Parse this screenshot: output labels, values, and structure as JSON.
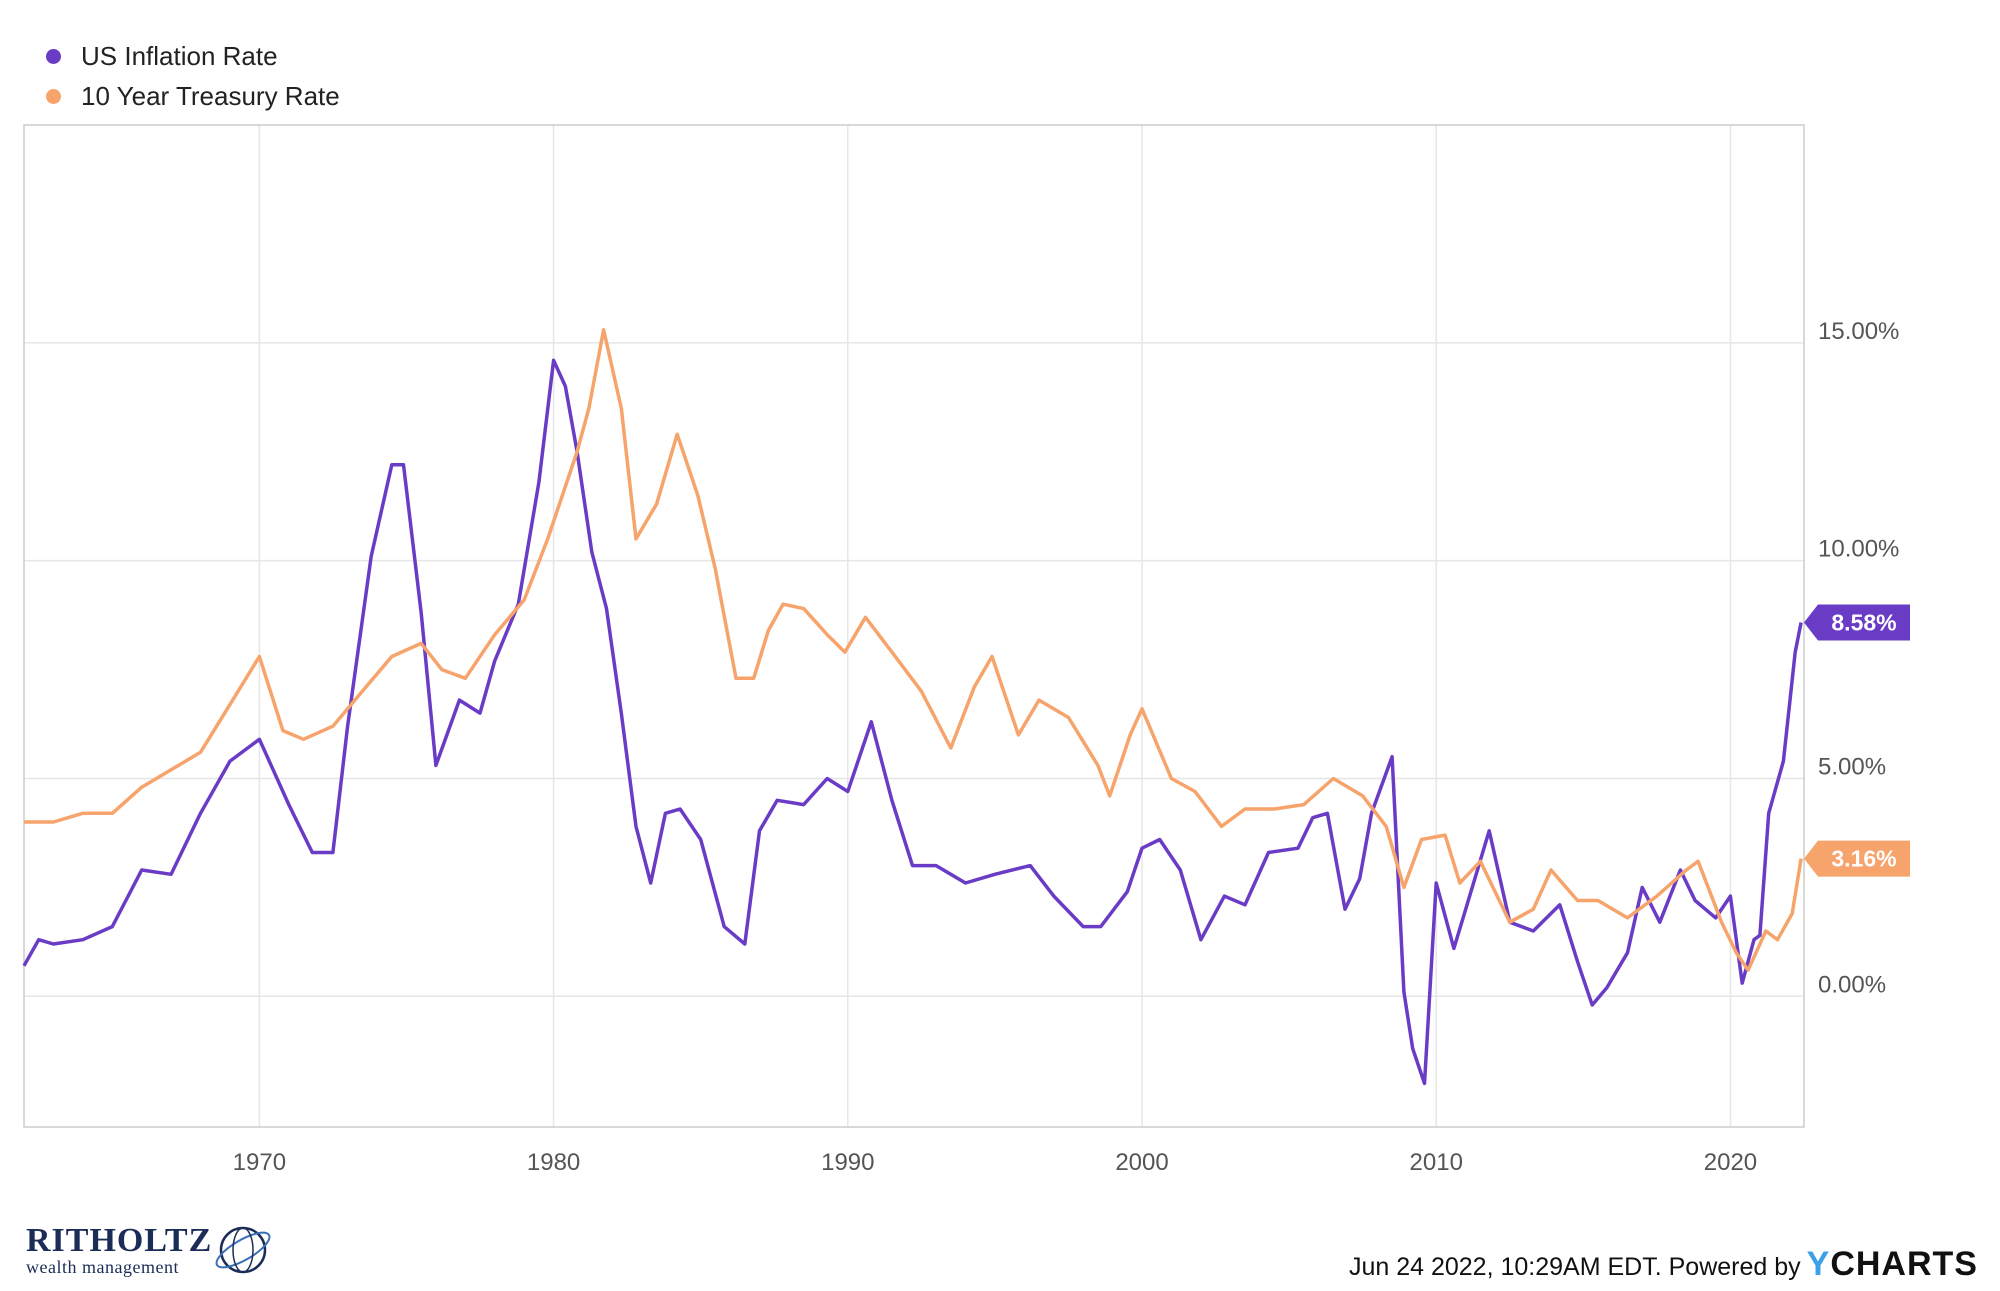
{
  "legend": [
    {
      "name": "US Inflation Rate",
      "color": "#6a3cc6"
    },
    {
      "name": "10 Year Treasury Rate",
      "color": "#f6a46b"
    }
  ],
  "footer": {
    "text": "Jun 24 2022, 10:29AM EDT. Powered by",
    "brand_y": "Y",
    "brand_rest": "CHARTS"
  },
  "logo": {
    "main": "RITHOLTZ",
    "sub": "wealth management"
  },
  "chart_data": {
    "type": "line",
    "xlim": [
      1962,
      2022.5
    ],
    "ylim": [
      -3,
      20
    ],
    "x_ticks": [
      "1970",
      "1980",
      "1990",
      "2000",
      "2010",
      "2020"
    ],
    "y_ticks": [
      "0.00%",
      "5.00%",
      "10.00%",
      "15.00%"
    ],
    "grid": true,
    "legend_position": "top-left",
    "series": [
      {
        "name": "US Inflation Rate",
        "color": "#6a3cc6",
        "last_label": "8.58%",
        "x": [
          1962,
          1962.5,
          1963,
          1964,
          1965,
          1966,
          1967,
          1968,
          1969,
          1970,
          1971,
          1971.8,
          1972.5,
          1973,
          1973.8,
          1974.5,
          1974.9,
          1975.5,
          1976,
          1976.8,
          1977.5,
          1978,
          1978.8,
          1979.5,
          1980,
          1980.4,
          1980.8,
          1981.3,
          1981.8,
          1982.3,
          1982.8,
          1983.3,
          1983.8,
          1984.3,
          1985,
          1985.8,
          1986.5,
          1987,
          1987.6,
          1988.5,
          1989.3,
          1990,
          1990.8,
          1991.5,
          1992.2,
          1993,
          1994,
          1995,
          1996.2,
          1997,
          1998,
          1998.6,
          1999.5,
          2000,
          2000.6,
          2001.3,
          2002,
          2002.8,
          2003.5,
          2004.3,
          2005.3,
          2005.8,
          2006.3,
          2006.9,
          2007.4,
          2007.8,
          2008.5,
          2008.9,
          2009.2,
          2009.6,
          2010,
          2010.6,
          2011,
          2011.8,
          2012.5,
          2013.3,
          2014.2,
          2014.8,
          2015.3,
          2015.8,
          2016.5,
          2017,
          2017.6,
          2018.3,
          2018.8,
          2019.5,
          2020,
          2020.4,
          2020.8,
          2021,
          2021.3,
          2021.8,
          2022.2,
          2022.4
        ],
        "y": [
          0.7,
          1.3,
          1.2,
          1.3,
          1.6,
          2.9,
          2.8,
          4.2,
          5.4,
          5.9,
          4.4,
          3.3,
          3.3,
          6.2,
          10.1,
          12.2,
          12.2,
          8.8,
          5.3,
          6.8,
          6.5,
          7.7,
          9.0,
          11.8,
          14.6,
          14.0,
          12.5,
          10.2,
          8.9,
          6.5,
          3.9,
          2.6,
          4.2,
          4.3,
          3.6,
          1.6,
          1.2,
          3.8,
          4.5,
          4.4,
          5.0,
          4.7,
          6.3,
          4.5,
          3.0,
          3.0,
          2.6,
          2.8,
          3.0,
          2.3,
          1.6,
          1.6,
          2.4,
          3.4,
          3.6,
          2.9,
          1.3,
          2.3,
          2.1,
          3.3,
          3.4,
          4.1,
          4.2,
          2.0,
          2.7,
          4.2,
          5.5,
          0.1,
          -1.2,
          -2.0,
          2.6,
          1.1,
          2.0,
          3.8,
          1.7,
          1.5,
          2.1,
          0.8,
          -0.2,
          0.2,
          1.0,
          2.5,
          1.7,
          2.9,
          2.2,
          1.8,
          2.3,
          0.3,
          1.3,
          1.4,
          4.2,
          5.4,
          7.9,
          8.58
        ]
      },
      {
        "name": "10 Year Treasury Rate",
        "color": "#f6a46b",
        "last_label": "3.16%",
        "x": [
          1962,
          1963,
          1964,
          1965,
          1966,
          1967,
          1968,
          1969,
          1970,
          1970.8,
          1971.5,
          1972.5,
          1973.5,
          1974.5,
          1975.5,
          1976.2,
          1977,
          1978,
          1979,
          1979.8,
          1980.3,
          1980.8,
          1981.2,
          1981.7,
          1982.3,
          1982.8,
          1983.5,
          1984.2,
          1984.9,
          1985.5,
          1986.2,
          1986.8,
          1987.3,
          1987.8,
          1988.5,
          1989.3,
          1989.9,
          1990.6,
          1991.5,
          1992.5,
          1993.5,
          1994.3,
          1994.9,
          1995.8,
          1996.5,
          1997.5,
          1998.5,
          1998.9,
          1999.6,
          2000,
          2001,
          2001.8,
          2002.7,
          2003.5,
          2004.5,
          2005.5,
          2006.5,
          2007.5,
          2008.3,
          2008.9,
          2009.5,
          2010.3,
          2010.8,
          2011.5,
          2012.5,
          2013.3,
          2013.9,
          2014.8,
          2015.5,
          2016.5,
          2017.5,
          2018.5,
          2018.9,
          2019.7,
          2020.2,
          2020.6,
          2021.2,
          2021.6,
          2022.1,
          2022.4
        ],
        "y": [
          4.0,
          4.0,
          4.2,
          4.2,
          4.8,
          5.2,
          5.6,
          6.7,
          7.8,
          6.1,
          5.9,
          6.2,
          7.0,
          7.8,
          8.1,
          7.5,
          7.3,
          8.3,
          9.1,
          10.5,
          11.5,
          12.5,
          13.5,
          15.3,
          13.5,
          10.5,
          11.3,
          12.9,
          11.5,
          9.8,
          7.3,
          7.3,
          8.4,
          9.0,
          8.9,
          8.3,
          7.9,
          8.7,
          7.9,
          7.0,
          5.7,
          7.1,
          7.8,
          6.0,
          6.8,
          6.4,
          5.3,
          4.6,
          6.0,
          6.6,
          5.0,
          4.7,
          3.9,
          4.3,
          4.3,
          4.4,
          5.0,
          4.6,
          3.9,
          2.5,
          3.6,
          3.7,
          2.6,
          3.1,
          1.7,
          2.0,
          2.9,
          2.2,
          2.2,
          1.8,
          2.3,
          2.9,
          3.1,
          1.7,
          1.0,
          0.6,
          1.5,
          1.3,
          1.9,
          3.16
        ]
      }
    ]
  }
}
